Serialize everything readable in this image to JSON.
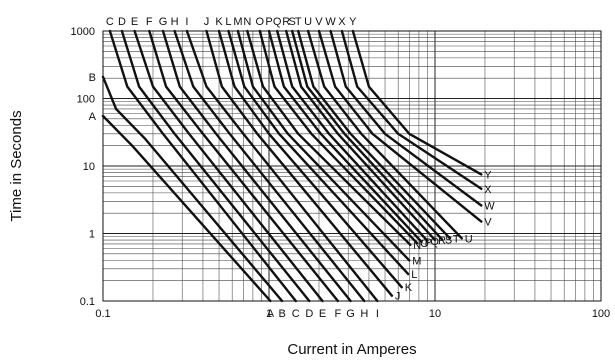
{
  "chart_data": {
    "type": "line",
    "title": "",
    "xlabel": "Current in Amperes",
    "ylabel": "Time in Seconds",
    "x_scale": "log",
    "y_scale": "log",
    "xlim": [
      0.1,
      100
    ],
    "ylim": [
      0.1,
      1000
    ],
    "grid": true,
    "x_tick_labels": [
      "0.1",
      "1",
      "10",
      "100"
    ],
    "y_tick_labels": [
      "0.1",
      "1",
      "10",
      "100",
      "1000"
    ],
    "series": [
      {
        "name": "A",
        "points": [
          [
            0.1,
            55
          ],
          [
            0.15,
            20
          ],
          [
            1.02,
            0.1
          ]
        ]
      },
      {
        "name": "B",
        "points": [
          [
            0.1,
            210
          ],
          [
            0.12,
            70
          ],
          [
            0.18,
            25
          ],
          [
            1.2,
            0.1
          ]
        ]
      },
      {
        "name": "C",
        "points": [
          [
            0.11,
            1000
          ],
          [
            0.14,
            150
          ],
          [
            0.23,
            30
          ],
          [
            1.45,
            0.1
          ]
        ]
      },
      {
        "name": "D",
        "points": [
          [
            0.13,
            1000
          ],
          [
            0.165,
            150
          ],
          [
            0.27,
            30
          ],
          [
            1.75,
            0.1
          ]
        ]
      },
      {
        "name": "E",
        "points": [
          [
            0.155,
            1000
          ],
          [
            0.2,
            150
          ],
          [
            0.33,
            30
          ],
          [
            2.1,
            0.1
          ]
        ]
      },
      {
        "name": "F",
        "points": [
          [
            0.19,
            1000
          ],
          [
            0.24,
            150
          ],
          [
            0.4,
            30
          ],
          [
            2.6,
            0.1
          ]
        ]
      },
      {
        "name": "G",
        "points": [
          [
            0.23,
            1000
          ],
          [
            0.29,
            150
          ],
          [
            0.48,
            30
          ],
          [
            3.1,
            0.1
          ]
        ]
      },
      {
        "name": "H",
        "points": [
          [
            0.27,
            1000
          ],
          [
            0.35,
            150
          ],
          [
            0.58,
            30
          ],
          [
            3.75,
            0.1
          ]
        ]
      },
      {
        "name": "I",
        "points": [
          [
            0.32,
            1000
          ],
          [
            0.42,
            150
          ],
          [
            0.7,
            30
          ],
          [
            4.5,
            0.1
          ]
        ]
      },
      {
        "name": "J",
        "points": [
          [
            0.42,
            1000
          ],
          [
            0.52,
            150
          ],
          [
            0.85,
            30
          ],
          [
            5.5,
            0.12
          ]
        ]
      },
      {
        "name": "K",
        "points": [
          [
            0.5,
            1000
          ],
          [
            0.62,
            150
          ],
          [
            1.0,
            30
          ],
          [
            6.3,
            0.16
          ]
        ]
      },
      {
        "name": "L",
        "points": [
          [
            0.57,
            1000
          ],
          [
            0.71,
            150
          ],
          [
            1.15,
            30
          ],
          [
            6.9,
            0.25
          ]
        ]
      },
      {
        "name": "M",
        "points": [
          [
            0.65,
            1000
          ],
          [
            0.8,
            150
          ],
          [
            1.3,
            30
          ],
          [
            7.0,
            0.4
          ]
        ]
      },
      {
        "name": "N",
        "points": [
          [
            0.74,
            1000
          ],
          [
            0.92,
            150
          ],
          [
            1.5,
            30
          ],
          [
            7.1,
            0.68
          ]
        ]
      },
      {
        "name": "O",
        "points": [
          [
            0.88,
            1000
          ],
          [
            1.08,
            150
          ],
          [
            1.8,
            30
          ],
          [
            7.8,
            0.72
          ]
        ]
      },
      {
        "name": "P",
        "points": [
          [
            1.0,
            1000
          ],
          [
            1.23,
            150
          ],
          [
            2.05,
            30
          ],
          [
            8.3,
            0.75
          ]
        ]
      },
      {
        "name": "Q",
        "points": [
          [
            1.12,
            1000
          ],
          [
            1.38,
            150
          ],
          [
            2.3,
            30
          ],
          [
            9.0,
            0.78
          ]
        ]
      },
      {
        "name": "R",
        "points": [
          [
            1.27,
            1000
          ],
          [
            1.56,
            150
          ],
          [
            2.6,
            30
          ],
          [
            10.0,
            0.8
          ]
        ]
      },
      {
        "name": "S",
        "points": [
          [
            1.38,
            1000
          ],
          [
            1.7,
            150
          ],
          [
            2.85,
            30
          ],
          [
            11.0,
            0.82
          ]
        ]
      },
      {
        "name": "T",
        "points": [
          [
            1.5,
            1000
          ],
          [
            1.85,
            150
          ],
          [
            3.1,
            30
          ],
          [
            12.3,
            0.85
          ]
        ]
      },
      {
        "name": "U",
        "points": [
          [
            1.72,
            1000
          ],
          [
            2.15,
            150
          ],
          [
            3.6,
            30
          ],
          [
            14.5,
            0.85
          ]
        ]
      },
      {
        "name": "V",
        "points": [
          [
            2.0,
            1000
          ],
          [
            2.5,
            150
          ],
          [
            4.2,
            30
          ],
          [
            19,
            1.5
          ]
        ]
      },
      {
        "name": "W",
        "points": [
          [
            2.35,
            1000
          ],
          [
            2.9,
            150
          ],
          [
            5.0,
            30
          ],
          [
            19,
            2.6
          ]
        ]
      },
      {
        "name": "X",
        "points": [
          [
            2.75,
            1000
          ],
          [
            3.4,
            150
          ],
          [
            6.0,
            30
          ],
          [
            19,
            4.6
          ]
        ]
      },
      {
        "name": "Y",
        "points": [
          [
            3.2,
            1000
          ],
          [
            4.0,
            150
          ],
          [
            7.0,
            30
          ],
          [
            19,
            7.5
          ]
        ]
      }
    ]
  }
}
